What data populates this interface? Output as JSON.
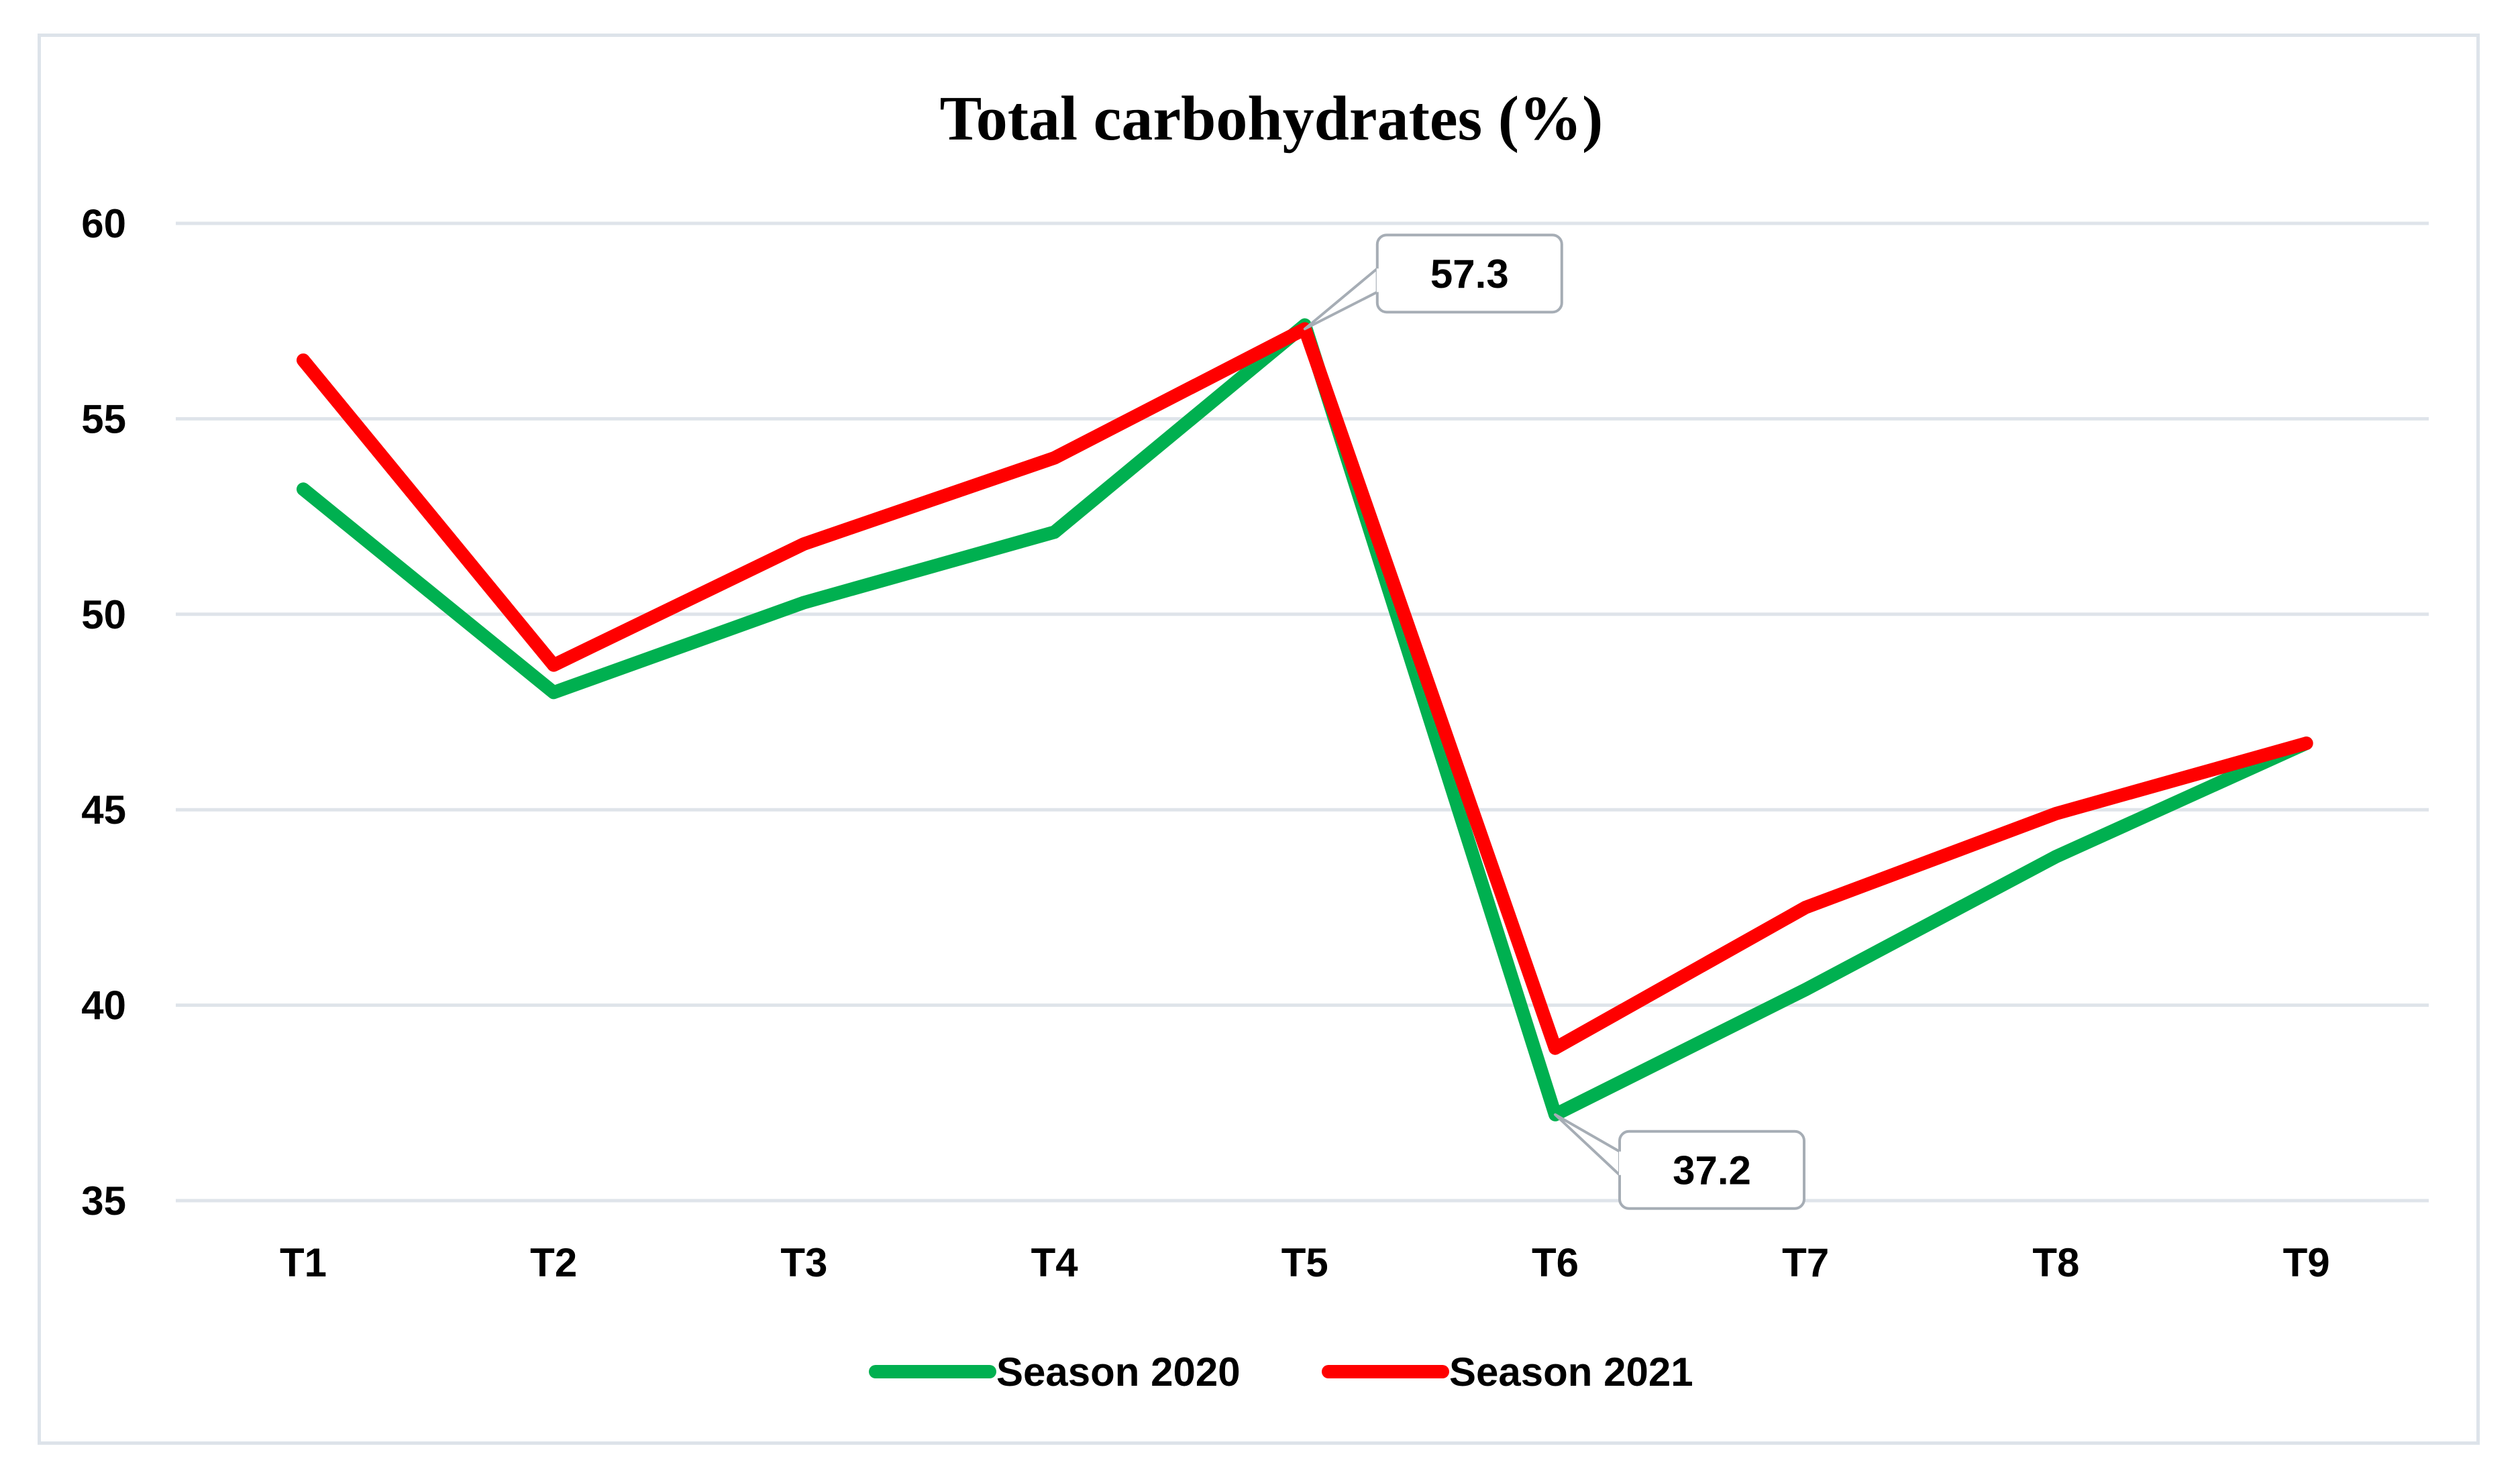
{
  "chart_data": {
    "type": "line",
    "title": "Total carbohydrates (%)",
    "xlabel": "",
    "ylabel": "",
    "categories": [
      "T1",
      "T2",
      "T3",
      "T4",
      "T5",
      "T6",
      "T7",
      "T8",
      "T9"
    ],
    "ylim": [
      35,
      60
    ],
    "yticks": [
      "35",
      "40",
      "45",
      "50",
      "55",
      "60"
    ],
    "grid": true,
    "legend_position": "bottom-center",
    "series": [
      {
        "name": "Season 2020",
        "color": "#00b050",
        "values": [
          53.2,
          48.0,
          50.3,
          52.1,
          57.4,
          37.2,
          40.4,
          43.8,
          46.7
        ]
      },
      {
        "name": "Season 2021",
        "color": "#ff0000",
        "values": [
          56.5,
          48.7,
          51.8,
          54.0,
          57.3,
          38.9,
          42.5,
          44.9,
          46.7
        ]
      }
    ],
    "annotations": [
      {
        "label": "57.3",
        "category": "T5",
        "value": 57.3,
        "placement": "above-right"
      },
      {
        "label": "37.2",
        "category": "T6",
        "value": 37.2,
        "placement": "below-right"
      }
    ]
  }
}
